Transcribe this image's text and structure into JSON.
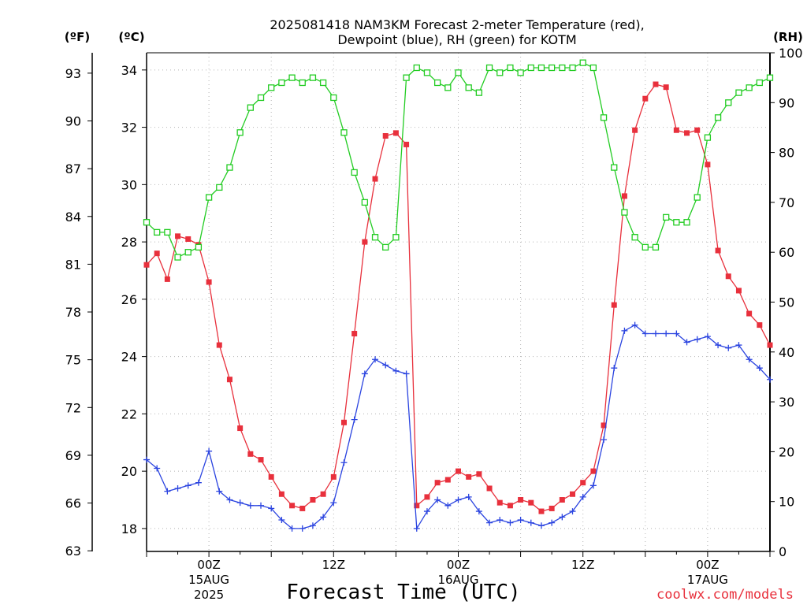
{
  "chart_data": {
    "type": "line",
    "title_line1": "2025081418 NAM3KM Forecast 2-meter Temperature (red),",
    "title_line2": "Dewpoint (blue), RH (green) for KOTM",
    "xlabel": "Forecast Time (UTC)",
    "watermark": "coolwx.com/models",
    "unit_left_f": "(ºF)",
    "unit_left_c": "(ºC)",
    "unit_right": "(RH)",
    "ylim_c": [
      17.2,
      34.6
    ],
    "ylim_rh": [
      0,
      100
    ],
    "f_ticks": [
      "93",
      "90",
      "87",
      "84",
      "81",
      "78",
      "75",
      "72",
      "69",
      "66",
      "63"
    ],
    "c_ticks": [
      "34",
      "32",
      "30",
      "28",
      "26",
      "24",
      "22",
      "20",
      "18"
    ],
    "rh_ticks": [
      "100",
      "90",
      "80",
      "70",
      "60",
      "50",
      "40",
      "30",
      "20",
      "10",
      "0"
    ],
    "x_ticks": [
      {
        "hour": 6,
        "line1": "00Z",
        "line2": "15AUG",
        "line3": "2025"
      },
      {
        "hour": 18,
        "line1": "12Z",
        "line2": "",
        "line3": ""
      },
      {
        "hour": 30,
        "line1": "00Z",
        "line2": "16AUG",
        "line3": ""
      },
      {
        "hour": 42,
        "line1": "12Z",
        "line2": "",
        "line3": ""
      },
      {
        "hour": 54,
        "line1": "00Z",
        "line2": "17AUG",
        "line3": ""
      }
    ],
    "x_start_hour": 0,
    "x_end_hour": 60,
    "grid": true,
    "series": [
      {
        "name": "Temperature",
        "color": "#e8303c",
        "marker": "filled-square",
        "values": [
          27.2,
          27.6,
          26.7,
          28.2,
          28.1,
          27.9,
          26.6,
          24.4,
          23.2,
          21.5,
          20.6,
          20.4,
          19.8,
          19.2,
          18.8,
          18.7,
          19.0,
          19.2,
          19.8,
          21.7,
          24.8,
          28.0,
          30.2,
          31.7,
          31.8,
          31.4,
          18.8,
          19.1,
          19.6,
          19.7,
          20.0,
          19.8,
          19.9,
          19.4,
          18.9,
          18.8,
          19.0,
          18.9,
          18.6,
          18.7,
          19.0,
          19.2,
          19.6,
          20.0,
          21.6,
          25.8,
          29.6,
          31.9,
          33.0,
          33.5,
          33.4,
          31.9,
          31.8,
          31.9,
          30.7,
          27.7,
          26.8,
          26.3,
          25.5,
          25.1,
          24.4
        ]
      },
      {
        "name": "Dewpoint",
        "color": "#2b44e0",
        "marker": "plus",
        "values": [
          20.4,
          20.1,
          19.3,
          19.4,
          19.5,
          19.6,
          20.7,
          19.3,
          19.0,
          18.9,
          18.8,
          18.8,
          18.7,
          18.3,
          18.0,
          18.0,
          18.1,
          18.4,
          18.9,
          20.3,
          21.8,
          23.4,
          23.9,
          23.7,
          23.5,
          23.4,
          18.0,
          18.6,
          19.0,
          18.8,
          19.0,
          19.1,
          18.6,
          18.2,
          18.3,
          18.2,
          18.3,
          18.2,
          18.1,
          18.2,
          18.4,
          18.6,
          19.1,
          19.5,
          21.1,
          23.6,
          24.9,
          25.1,
          24.8,
          24.8,
          24.8,
          24.8,
          24.5,
          24.6,
          24.7,
          24.4,
          24.3,
          24.4,
          23.9,
          23.6,
          23.2
        ]
      },
      {
        "name": "RH",
        "color": "#22cc22",
        "marker": "open-square",
        "values": [
          66,
          64,
          64,
          59,
          60,
          61,
          71,
          73,
          77,
          84,
          89,
          91,
          93,
          94,
          95,
          94,
          95,
          94,
          91,
          84,
          76,
          70,
          63,
          61,
          63,
          95,
          97,
          96,
          94,
          93,
          96,
          93,
          92,
          97,
          96,
          97,
          96,
          97,
          97,
          97,
          97,
          97,
          98,
          97,
          87,
          77,
          68,
          63,
          61,
          61,
          67,
          66,
          66,
          71,
          83,
          87,
          90,
          92,
          93,
          94,
          95
        ]
      }
    ]
  }
}
